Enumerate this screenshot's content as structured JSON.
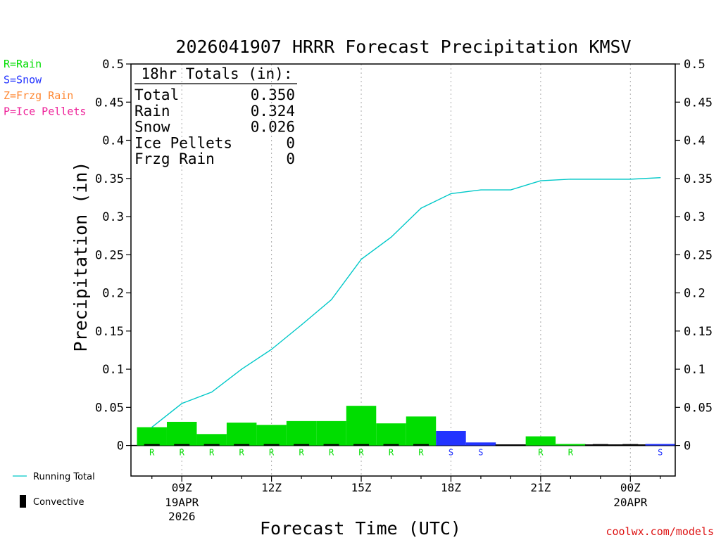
{
  "chart_data": {
    "type": "bar",
    "title": "2026041907 HRRR Forecast Precipitation KMSV",
    "xlabel": "Forecast Time (UTC)",
    "ylabel": "Precipitation (in)",
    "ylim": [
      -0.04,
      0.5
    ],
    "yticks": [
      0,
      0.05,
      0.1,
      0.15,
      0.2,
      0.25,
      0.3,
      0.35,
      0.4,
      0.45,
      0.5
    ],
    "ytick_labels": [
      "0",
      "0.05",
      "0.1",
      "0.15",
      "0.2",
      "0.25",
      "0.3",
      "0.35",
      "0.4",
      "0.45",
      "0.5"
    ],
    "xlim_hours": [
      7.3,
      25.5
    ],
    "xticks": [
      {
        "hour": 9,
        "label": "09Z",
        "line2": "19APR",
        "line3": "2026"
      },
      {
        "hour": 12,
        "label": "12Z",
        "line2": "",
        "line3": ""
      },
      {
        "hour": 15,
        "label": "15Z",
        "line2": "",
        "line3": ""
      },
      {
        "hour": 18,
        "label": "18Z",
        "line2": "",
        "line3": ""
      },
      {
        "hour": 21,
        "label": "21Z",
        "line2": "",
        "line3": ""
      },
      {
        "hour": 24,
        "label": "00Z",
        "line2": "20APR",
        "line3": ""
      }
    ],
    "hours": [
      8,
      9,
      10,
      11,
      12,
      13,
      14,
      15,
      16,
      17,
      18,
      19,
      20,
      21,
      22,
      23,
      24,
      25
    ],
    "hourly_precip": [
      0.024,
      0.031,
      0.015,
      0.03,
      0.027,
      0.032,
      0.032,
      0.052,
      0.029,
      0.038,
      0.019,
      0.004,
      0.001,
      0.012,
      0.002,
      0.001,
      0.001,
      0.002
    ],
    "precip_type": [
      "R",
      "R",
      "R",
      "R",
      "R",
      "R",
      "R",
      "R",
      "R",
      "R",
      "S",
      "S",
      "",
      "R",
      "R",
      "",
      "",
      "S"
    ],
    "convective": [
      0.001,
      0.001,
      0.001,
      0.001,
      0.001,
      0.001,
      0.001,
      0.001,
      0.001,
      0.001,
      0,
      0,
      0,
      0,
      0,
      0.001,
      0.001,
      0
    ],
    "running_total": {
      "name": "Running Total",
      "x": [
        8,
        9,
        10,
        11,
        12,
        13,
        14,
        15,
        16,
        17,
        18,
        19,
        20,
        21,
        22,
        23,
        24,
        25
      ],
      "y": [
        0.024,
        0.055,
        0.07,
        0.1,
        0.126,
        0.158,
        0.191,
        0.244,
        0.273,
        0.311,
        0.33,
        0.335,
        0.335,
        0.347,
        0.349,
        0.349,
        0.349,
        0.351
      ]
    },
    "type_legend": [
      {
        "code": "R",
        "text": "R=Rain",
        "color": "#00dd00"
      },
      {
        "code": "S",
        "text": "S=Snow",
        "color": "#2233ff"
      },
      {
        "code": "Z",
        "text": "Z=Frzg Rain",
        "color": "#ff8833"
      },
      {
        "code": "P",
        "text": "P=Ice Pellets",
        "color": "#ee2299"
      }
    ],
    "totals_box": {
      "heading": "18hr Totals (in):",
      "rows": [
        {
          "label": "Total",
          "value": "0.350"
        },
        {
          "label": "Rain",
          "value": "0.324"
        },
        {
          "label": "Snow",
          "value": "0.026"
        },
        {
          "label": "Ice Pellets",
          "value": "0"
        },
        {
          "label": "Frzg Rain",
          "value": "0"
        }
      ]
    },
    "bottom_legend": {
      "line_label": "Running Total",
      "convective_label": "Convective"
    },
    "colors": {
      "rain": "#00dd00",
      "snow": "#2233ff",
      "freezing_rain": "#ff8833",
      "ice_pellets": "#ee2299",
      "running_total": "#00c8c8",
      "convective": "#000000",
      "credit": "#dd1111"
    },
    "credit": "coolwx.com/models"
  }
}
